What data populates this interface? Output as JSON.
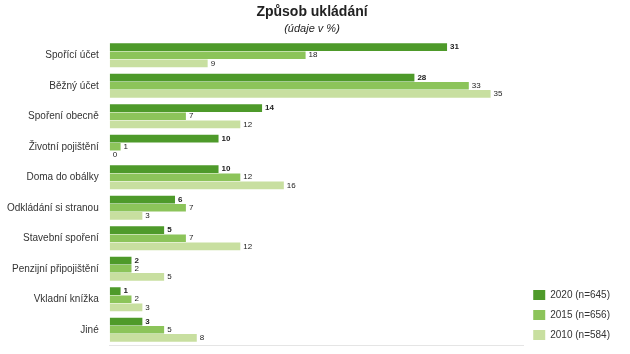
{
  "chart_data": {
    "type": "bar",
    "orientation": "horizontal",
    "title": "Způsob ukládání",
    "subtitle": "(údaje v %)",
    "categories": [
      "Spořící účet",
      "Běžný účet",
      "Spoření obecně",
      "Životní pojištění",
      "Doma do obálky",
      "Odkládání si stranou",
      "Stavební spoření",
      "Penzijní připojištění",
      "Vkladní knížka",
      "Jiné"
    ],
    "series": [
      {
        "name": "2020 (n=645)",
        "color": "#4e9a2a",
        "values": [
          31,
          28,
          14,
          10,
          10,
          6,
          5,
          2,
          1,
          3
        ]
      },
      {
        "name": "2015 (n=656)",
        "color": "#8cc45a",
        "values": [
          18,
          33,
          7,
          1,
          12,
          7,
          7,
          2,
          2,
          5
        ]
      },
      {
        "name": "2010 (n=584)",
        "color": "#c8dfa0",
        "values": [
          9,
          35,
          12,
          0,
          16,
          3,
          12,
          5,
          3,
          8
        ]
      }
    ],
    "xlim": [
      0,
      38
    ],
    "grid": false,
    "legend": "lower right",
    "data_labels": true,
    "tick_labels": "y"
  }
}
